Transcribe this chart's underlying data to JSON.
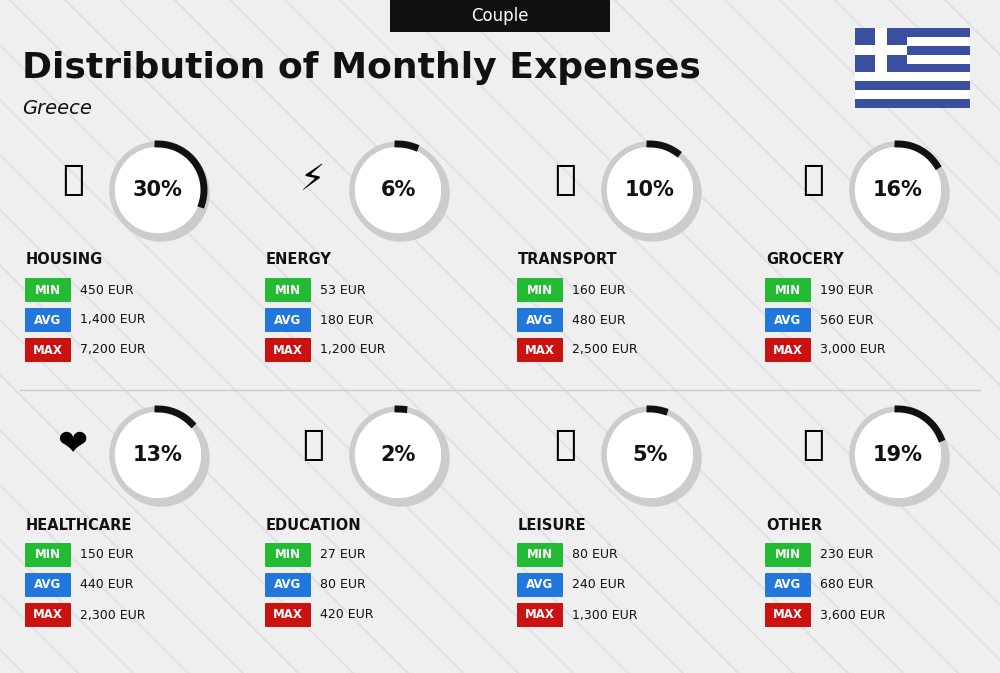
{
  "title": "Distribution of Monthly Expenses",
  "subtitle": "Greece",
  "header_label": "Couple",
  "bg_color": "#efefef",
  "categories": [
    {
      "name": "HOUSING",
      "pct": 30,
      "emoji": "🏙",
      "min_val": "450 EUR",
      "avg_val": "1,400 EUR",
      "max_val": "7,200 EUR",
      "row": 0,
      "col": 0
    },
    {
      "name": "ENERGY",
      "pct": 6,
      "emoji": "⚡",
      "min_val": "53 EUR",
      "avg_val": "180 EUR",
      "max_val": "1,200 EUR",
      "row": 0,
      "col": 1
    },
    {
      "name": "TRANSPORT",
      "pct": 10,
      "emoji": "🚌",
      "min_val": "160 EUR",
      "avg_val": "480 EUR",
      "max_val": "2,500 EUR",
      "row": 0,
      "col": 2
    },
    {
      "name": "GROCERY",
      "pct": 16,
      "emoji": "🛒",
      "min_val": "190 EUR",
      "avg_val": "560 EUR",
      "max_val": "3,000 EUR",
      "row": 0,
      "col": 3
    },
    {
      "name": "HEALTHCARE",
      "pct": 13,
      "emoji": "❤️",
      "min_val": "150 EUR",
      "avg_val": "440 EUR",
      "max_val": "2,300 EUR",
      "row": 1,
      "col": 0
    },
    {
      "name": "EDUCATION",
      "pct": 2,
      "emoji": "🎓",
      "min_val": "27 EUR",
      "avg_val": "80 EUR",
      "max_val": "420 EUR",
      "row": 1,
      "col": 1
    },
    {
      "name": "LEISURE",
      "pct": 5,
      "emoji": "🛍",
      "min_val": "80 EUR",
      "avg_val": "240 EUR",
      "max_val": "1,300 EUR",
      "row": 1,
      "col": 2
    },
    {
      "name": "OTHER",
      "pct": 19,
      "emoji": "💰",
      "min_val": "230 EUR",
      "avg_val": "680 EUR",
      "max_val": "3,600 EUR",
      "row": 1,
      "col": 3
    }
  ],
  "min_color": "#22bb33",
  "avg_color": "#2277dd",
  "max_color": "#cc1111",
  "label_color": "#ffffff",
  "title_color": "#111111",
  "name_color": "#111111",
  "value_color": "#111111",
  "circle_bg": "#ffffff",
  "circle_outline": "#cccccc",
  "arc_color": "#111111",
  "header_bg": "#111111",
  "header_text_color": "#ffffff",
  "flag_blue": "#3b4fa0",
  "diag_color": "#e0e0e8"
}
